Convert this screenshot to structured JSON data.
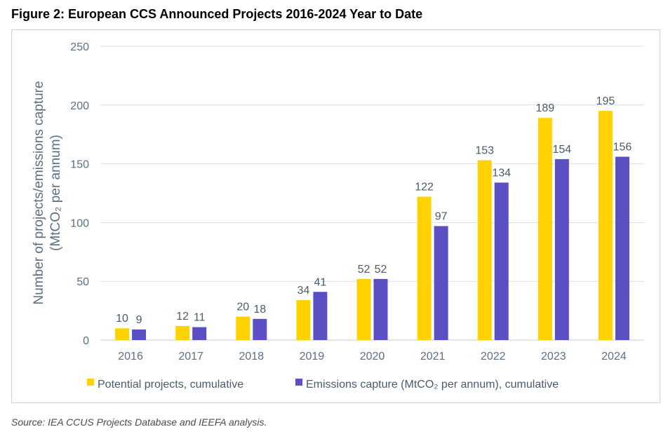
{
  "title": "Figure 2: European CCS Announced Projects 2016-2024 Year to Date",
  "source": "Source: IEA CCUS Projects Database and IEEFA analysis.",
  "chart_data": {
    "type": "bar",
    "categories": [
      "2016",
      "2017",
      "2018",
      "2019",
      "2020",
      "2021",
      "2022",
      "2023",
      "2024"
    ],
    "series": [
      {
        "name": "Potential projects, cumulative",
        "color": "#FFD200",
        "values": [
          10,
          12,
          20,
          34,
          52,
          122,
          153,
          189,
          195
        ]
      },
      {
        "name": "Emissions capture (MtCO₂ per annum), cumulative",
        "color": "#5B4FC4",
        "values": [
          9,
          11,
          18,
          41,
          52,
          97,
          134,
          154,
          156
        ]
      }
    ],
    "ylabel_line1": "Number of projects/emissions capture",
    "ylabel_line2": "(MtCO₂ per annum)",
    "ylim": [
      0,
      250
    ],
    "yticks": [
      0,
      50,
      100,
      150,
      200,
      250
    ],
    "grid": true,
    "legend_position": "bottom"
  }
}
